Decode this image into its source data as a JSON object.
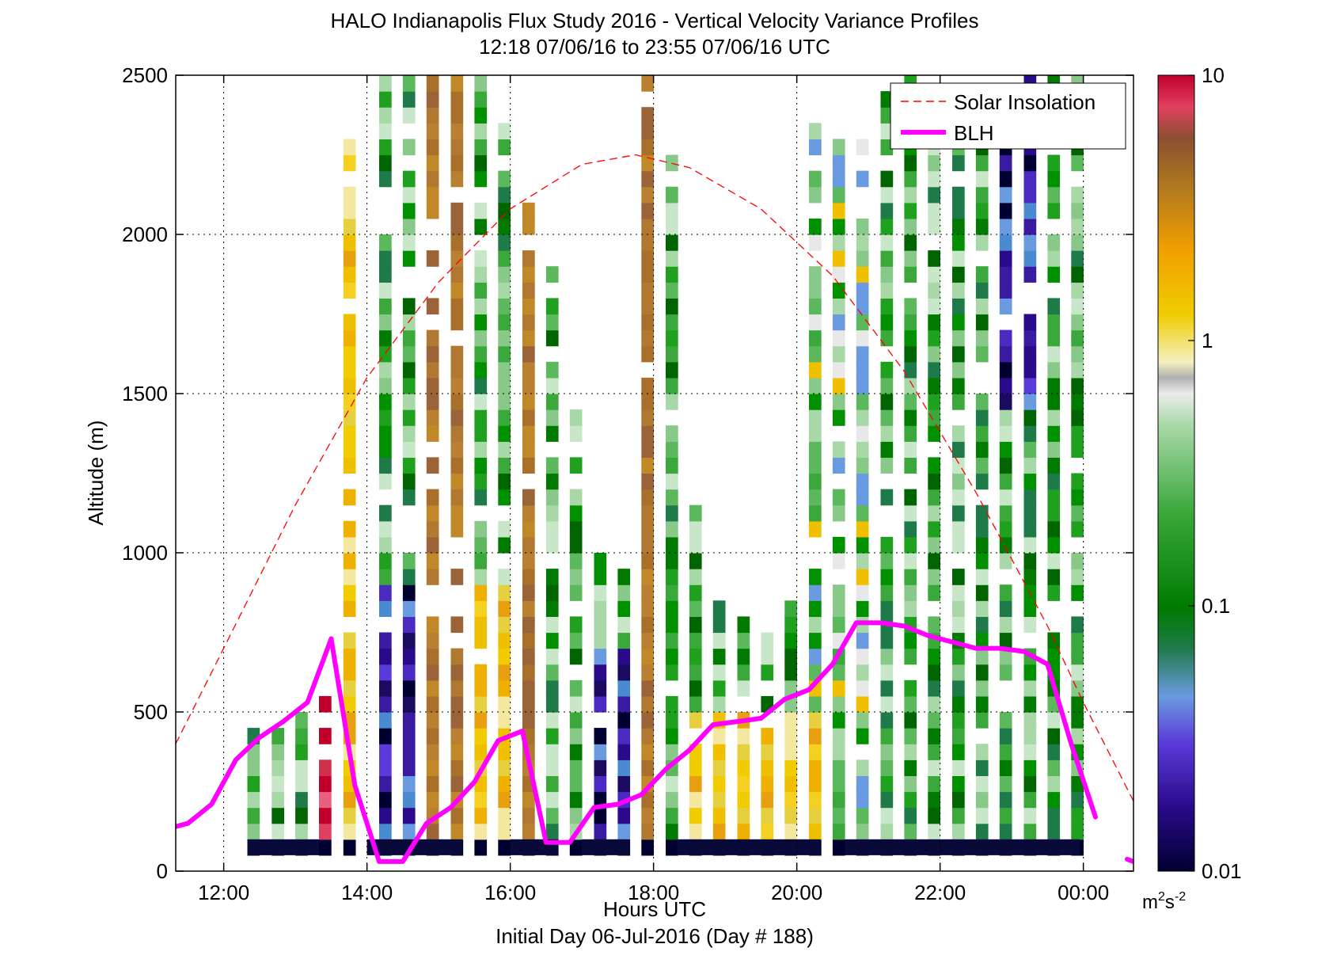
{
  "chart_data": {
    "type": "heatmap",
    "title": "HALO Indianapolis Flux Study 2016 - Vertical Velocity Variance Profiles",
    "subtitle": "12:18 07/06/16 to 23:55 07/06/16  UTC",
    "xlabel": "Hours UTC",
    "xlabel2": "Initial Day 06-Jul-2016 (Day # 188)",
    "ylabel": "Altitude (m)",
    "xlim": [
      11.33,
      24.7
    ],
    "ylim": [
      0,
      2500
    ],
    "x_ticks": [
      12,
      14,
      16,
      18,
      20,
      22,
      24
    ],
    "x_tick_labels": [
      "12:00",
      "14:00",
      "16:00",
      "18:00",
      "20:00",
      "22:00",
      "00:00"
    ],
    "y_ticks": [
      0,
      500,
      1000,
      1500,
      2000,
      2500
    ],
    "y_tick_labels": [
      "0",
      "500",
      "1000",
      "1500",
      "2000",
      "2500"
    ],
    "grid": true,
    "legend_position": "top-right",
    "colorbar": {
      "scale": "log",
      "range": [
        0.01,
        10
      ],
      "ticks": [
        0.01,
        0.1,
        1,
        10
      ],
      "tick_labels": [
        "0.01",
        "0.1",
        "1",
        "10"
      ],
      "units_base": "m",
      "units_sup1": "2",
      "units_mid": "s",
      "units_sup2": "-2"
    },
    "heatmap_grid": {
      "time_step_hours": 0.1667,
      "altitude_step_m": 50
    },
    "columns": [
      {
        "t": 12.33,
        "top": 450
      },
      {
        "t": 12.67,
        "top": 450
      },
      {
        "t": 13.0,
        "top": 500
      },
      {
        "t": 13.33,
        "top": 550
      },
      {
        "t": 13.67,
        "top": 2300
      },
      {
        "t": 14.17,
        "top": 2500
      },
      {
        "t": 14.5,
        "top": 2500
      },
      {
        "t": 14.83,
        "top": 2500
      },
      {
        "t": 15.17,
        "top": 2500
      },
      {
        "t": 15.5,
        "top": 2500
      },
      {
        "t": 15.83,
        "top": 2350
      },
      {
        "t": 16.17,
        "top": 2100
      },
      {
        "t": 16.5,
        "top": 1900
      },
      {
        "t": 16.83,
        "top": 1500
      },
      {
        "t": 17.17,
        "top": 1000
      },
      {
        "t": 17.5,
        "top": 950
      },
      {
        "t": 17.83,
        "top": 2500
      },
      {
        "t": 18.17,
        "top": 2300
      },
      {
        "t": 18.5,
        "top": 1200
      },
      {
        "t": 18.83,
        "top": 850
      },
      {
        "t": 19.17,
        "top": 800
      },
      {
        "t": 19.5,
        "top": 750
      },
      {
        "t": 19.83,
        "top": 850
      },
      {
        "t": 20.17,
        "top": 2400
      },
      {
        "t": 20.5,
        "top": 2300
      },
      {
        "t": 20.83,
        "top": 2300
      },
      {
        "t": 21.17,
        "top": 2450
      },
      {
        "t": 21.5,
        "top": 2500
      },
      {
        "t": 21.83,
        "top": 2400
      },
      {
        "t": 22.17,
        "top": 2400
      },
      {
        "t": 22.5,
        "top": 2300
      },
      {
        "t": 22.83,
        "top": 2300
      },
      {
        "t": 23.17,
        "top": 2500
      },
      {
        "t": 23.5,
        "top": 2500
      },
      {
        "t": 23.83,
        "top": 2500
      }
    ],
    "bottom_band_segments": [
      [
        12.33,
        13.33
      ],
      [
        14.0,
        15.33
      ],
      [
        16.0,
        16.67
      ],
      [
        17.0,
        17.67
      ],
      [
        18.33,
        20.33
      ],
      [
        20.67,
        23.95
      ]
    ],
    "series": [
      {
        "name": "Solar Insolation",
        "style": "dashed",
        "color": "#ff0000",
        "x": [
          11.33,
          12.0,
          13.0,
          14.0,
          15.0,
          16.0,
          17.0,
          17.75,
          18.5,
          19.5,
          20.5,
          21.5,
          22.5,
          23.5,
          24.0,
          24.7
        ],
        "y": [
          400,
          700,
          1150,
          1550,
          1850,
          2080,
          2220,
          2250,
          2210,
          2080,
          1870,
          1570,
          1190,
          770,
          530,
          220
        ]
      },
      {
        "name": "BLH",
        "style": "solid",
        "color": "#ff00ff",
        "x": [
          11.33,
          11.5,
          11.83,
          12.17,
          12.5,
          12.83,
          13.17,
          13.5,
          13.83,
          14.17,
          14.5,
          14.83,
          15.17,
          15.5,
          15.83,
          16.17,
          16.5,
          16.83,
          17.17,
          17.5,
          17.83,
          18.17,
          18.5,
          18.83,
          19.17,
          19.5,
          19.83,
          20.17,
          20.5,
          20.83,
          21.17,
          21.5,
          21.83,
          22.17,
          22.5,
          22.83,
          23.17,
          23.5,
          23.83,
          24.17,
          24.5,
          24.7
        ],
        "y": [
          140,
          150,
          210,
          350,
          420,
          470,
          530,
          730,
          270,
          30,
          30,
          150,
          200,
          280,
          410,
          440,
          90,
          90,
          200,
          210,
          240,
          320,
          380,
          460,
          470,
          480,
          540,
          570,
          650,
          780,
          780,
          770,
          740,
          720,
          700,
          700,
          690,
          650,
          400,
          170,
          null,
          30
        ]
      }
    ]
  }
}
